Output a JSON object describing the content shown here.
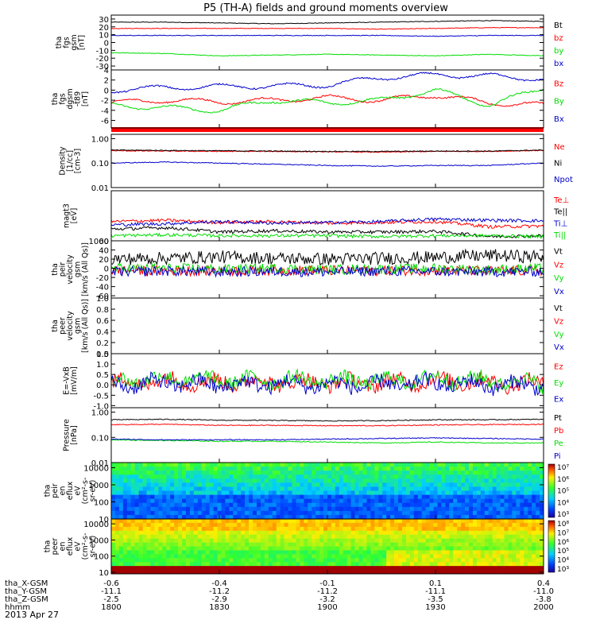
{
  "title": "P5 (TH-A) fields and ground moments overview",
  "date": "2013 Apr 27",
  "colors": {
    "black": "#000000",
    "red": "#ff0000",
    "green": "#00dd00",
    "blue": "#0000cc"
  },
  "chart_data": [
    {
      "id": "fgs",
      "type": "line",
      "ylabel": [
        "tha",
        "fgs",
        "gsm",
        "[nT]"
      ],
      "yscale": "linear",
      "ylim": [
        -35,
        35
      ],
      "yticks": [
        {
          "v": 30,
          "t": "30"
        },
        {
          "v": 20,
          "t": "20"
        },
        {
          "v": 10,
          "t": "10"
        },
        {
          "v": 0,
          "t": "0"
        },
        {
          "v": -10,
          "t": "-10"
        },
        {
          "v": -20,
          "t": "-20"
        },
        {
          "v": -30,
          "t": "-30"
        }
      ],
      "series": [
        {
          "name": "Bt",
          "color": "#000000",
          "base": [
            26,
            26,
            25,
            24,
            25,
            26,
            27,
            28,
            27
          ]
        },
        {
          "name": "bz",
          "color": "#ff0000",
          "base": [
            18,
            18,
            18,
            18,
            18,
            17,
            18,
            19,
            19
          ]
        },
        {
          "name": "by",
          "color": "#00dd00",
          "base": [
            -13,
            -14,
            -17,
            -16,
            -15,
            -16,
            -17,
            -15,
            -17
          ]
        },
        {
          "name": "bx",
          "color": "#0000cc",
          "base": [
            9,
            9,
            9,
            9,
            9,
            9,
            8,
            9,
            9
          ]
        }
      ]
    },
    {
      "id": "fgs_dgsm",
      "type": "line",
      "ylabel": [
        "tha",
        "fgs",
        "dgsm",
        "-t89",
        "[nT]"
      ],
      "yscale": "linear",
      "ylim": [
        -7.5,
        4
      ],
      "yticks": [
        {
          "v": 4,
          "t": "4"
        },
        {
          "v": 2,
          "t": "2"
        },
        {
          "v": 0,
          "t": "0"
        },
        {
          "v": -2,
          "t": "-2"
        },
        {
          "v": -4,
          "t": "-4"
        },
        {
          "v": -6,
          "t": "-6"
        }
      ],
      "series": [
        {
          "name": "Bz",
          "color": "#ff0000",
          "base": [
            -2.5,
            -2,
            -2.3,
            -2,
            -1.5,
            -2,
            -1,
            -2.5,
            -3
          ]
        },
        {
          "name": "By",
          "color": "#00dd00",
          "base": [
            -3,
            -3.5,
            -4,
            -2,
            -2.5,
            -2,
            0,
            -3,
            0.5
          ]
        },
        {
          "name": "Bx",
          "color": "#0000cc",
          "base": [
            0,
            0.5,
            0.7,
            0.8,
            1,
            2.5,
            3,
            2.8,
            2.2
          ]
        }
      ]
    },
    {
      "id": "density",
      "type": "line",
      "ylabel": [
        "Density",
        "[1/cc]",
        "[cm-3]"
      ],
      "yscale": "log",
      "ylim": [
        0.01,
        1.5
      ],
      "yticks": [
        {
          "v": 1,
          "t": "1.00"
        },
        {
          "v": 0.1,
          "t": "0.10"
        },
        {
          "v": 0.01,
          "t": "0.01"
        }
      ],
      "series": [
        {
          "name": "Ne",
          "color": "#ff0000",
          "base": [
            0.32,
            0.31,
            0.3,
            0.3,
            0.29,
            0.28,
            0.3,
            0.3,
            0.33
          ]
        },
        {
          "name": "Ni",
          "color": "#000000",
          "base": [
            0.34,
            0.33,
            0.32,
            0.31,
            0.3,
            0.3,
            0.31,
            0.31,
            0.34
          ]
        },
        {
          "name": "Npot",
          "color": "#0000cc",
          "base": [
            0.1,
            0.11,
            0.1,
            0.09,
            0.08,
            0.075,
            0.08,
            0.08,
            0.1
          ]
        }
      ]
    },
    {
      "id": "temperature",
      "type": "line",
      "ylabel": [
        "magt3",
        "[eV]"
      ],
      "yscale": "log",
      "ylim": [
        1000,
        50000
      ],
      "yticks": [
        {
          "v": 1000,
          "t": "1000"
        }
      ],
      "series": [
        {
          "name": "Te⊥",
          "color": "#ff0000",
          "base": [
            4500,
            5000,
            4200,
            4500,
            4000,
            4200,
            4500,
            3000,
            3200
          ]
        },
        {
          "name": "Te||",
          "color": "#000000",
          "base": [
            2500,
            2800,
            2000,
            2200,
            2000,
            2000,
            2100,
            1400,
            1500
          ]
        },
        {
          "name": "Ti⊥",
          "color": "#0000cc",
          "base": [
            3500,
            3800,
            4500,
            4000,
            4200,
            4500,
            5500,
            5000,
            4800
          ]
        },
        {
          "name": "Ti||",
          "color": "#00dd00",
          "base": [
            1500,
            1600,
            1500,
            1500,
            1500,
            1400,
            1500,
            1500,
            1400
          ]
        }
      ]
    },
    {
      "id": "peir_velocity",
      "type": "line",
      "ylabel": [
        "tha",
        "peir",
        "velocity",
        "gsm",
        "[km/s (All Qs)]"
      ],
      "yscale": "linear",
      "ylim": [
        -65,
        60
      ],
      "yticks": [
        {
          "v": 60,
          "t": "60"
        },
        {
          "v": 40,
          "t": "40"
        },
        {
          "v": 20,
          "t": "20"
        },
        {
          "v": 0,
          "t": "0"
        },
        {
          "v": -20,
          "t": "-20"
        },
        {
          "v": -40,
          "t": "-40"
        },
        {
          "v": -60,
          "t": "-60"
        }
      ],
      "series": [
        {
          "name": "Vt",
          "color": "#000000",
          "base": [
            20,
            22,
            25,
            22,
            20,
            22,
            24,
            28,
            25
          ]
        },
        {
          "name": "Vz",
          "color": "#ff0000",
          "base": [
            -5,
            -5,
            -6,
            -4,
            -5,
            -5,
            -5,
            -6,
            -5
          ]
        },
        {
          "name": "Vy",
          "color": "#00dd00",
          "base": [
            0,
            0,
            -2,
            0,
            -3,
            -2,
            0,
            -3,
            0
          ]
        },
        {
          "name": "Vx",
          "color": "#0000cc",
          "base": [
            -8,
            -6,
            -8,
            -7,
            -8,
            -6,
            -7,
            -8,
            -7
          ]
        }
      ]
    },
    {
      "id": "peer_velocity",
      "type": "line",
      "ylabel": [
        "tha",
        "peer",
        "velocity",
        "gsm",
        "[km/s (All Qs)]"
      ],
      "yscale": "linear",
      "ylim": [
        0,
        1
      ],
      "yticks": [
        {
          "v": 1,
          "t": "1.0"
        },
        {
          "v": 0.8,
          "t": "0.8"
        },
        {
          "v": 0.6,
          "t": "0.6"
        },
        {
          "v": 0.4,
          "t": "0.4"
        },
        {
          "v": 0.2,
          "t": "0.2"
        },
        {
          "v": 0,
          "t": "0.0"
        }
      ],
      "series": [
        {
          "name": "Vt",
          "color": "#000000",
          "base": []
        },
        {
          "name": "Vz",
          "color": "#ff0000",
          "base": []
        },
        {
          "name": "Vy",
          "color": "#00dd00",
          "base": []
        },
        {
          "name": "Vx",
          "color": "#0000cc",
          "base": []
        }
      ]
    },
    {
      "id": "efield",
      "type": "line",
      "ylabel": [
        "E=-VxB",
        "[mV/m]"
      ],
      "yscale": "linear",
      "ylim": [
        -1.1,
        1.5
      ],
      "yticks": [
        {
          "v": 1.5,
          "t": "1.5"
        },
        {
          "v": 1,
          "t": "1.0"
        },
        {
          "v": 0.5,
          "t": "0.5"
        },
        {
          "v": 0,
          "t": "0.0"
        },
        {
          "v": -0.5,
          "t": "-0.5"
        },
        {
          "v": -1,
          "t": "-1.0"
        }
      ],
      "series": [
        {
          "name": "Ez",
          "color": "#ff0000",
          "base": [
            0.1,
            0.2,
            0.1,
            0.15,
            0.1,
            0.1,
            0.2,
            0.1,
            0.05
          ]
        },
        {
          "name": "Ey",
          "color": "#00dd00",
          "base": [
            0.2,
            0.3,
            0.2,
            0.25,
            0.2,
            0.2,
            0.3,
            0.2,
            0.1
          ]
        },
        {
          "name": "Ex",
          "color": "#0000cc",
          "base": [
            0,
            0.1,
            0,
            0.05,
            0,
            0,
            0.1,
            0,
            0
          ]
        }
      ]
    },
    {
      "id": "pressure",
      "type": "line",
      "ylabel": [
        "Pressure",
        "[nPa]"
      ],
      "yscale": "log",
      "ylim": [
        0.01,
        1.5
      ],
      "yticks": [
        {
          "v": 1,
          "t": "1.00"
        },
        {
          "v": 0.1,
          "t": "0.10"
        },
        {
          "v": 0.01,
          "t": "0.01"
        }
      ],
      "series": [
        {
          "name": "Pt",
          "color": "#000000",
          "base": [
            0.5,
            0.52,
            0.48,
            0.47,
            0.45,
            0.46,
            0.5,
            0.5,
            0.52
          ]
        },
        {
          "name": "Pb",
          "color": "#ff0000",
          "base": [
            0.32,
            0.33,
            0.3,
            0.3,
            0.29,
            0.29,
            0.31,
            0.32,
            0.33
          ]
        },
        {
          "name": "Pe",
          "color": "#00dd00",
          "base": [
            0.08,
            0.075,
            0.07,
            0.07,
            0.065,
            0.06,
            0.065,
            0.06,
            0.06
          ]
        },
        {
          "name": "Pi",
          "color": "#0000cc",
          "base": [
            0.085,
            0.08,
            0.08,
            0.08,
            0.085,
            0.09,
            0.095,
            0.09,
            0.085
          ]
        }
      ]
    },
    {
      "id": "peir_eflux",
      "type": "heatmap",
      "ylabel": [
        "tha",
        "peir",
        "en",
        "eflux",
        "eV",
        "(cm²-s-",
        "sr-eV)"
      ],
      "yscale": "log",
      "ylim": [
        10,
        20000
      ],
      "yticks": [
        {
          "v": 10000,
          "t": "10000"
        },
        {
          "v": 1000,
          "t": "1000"
        },
        {
          "v": 100,
          "t": "100"
        },
        {
          "v": 10,
          "t": "10"
        }
      ],
      "colorbar": {
        "ticks": [
          "10⁷",
          "10⁶",
          "10⁵",
          "10⁴",
          "10³"
        ]
      },
      "series": []
    },
    {
      "id": "peer_eflux",
      "type": "heatmap",
      "ylabel": [
        "tha",
        "peer",
        "en",
        "eflux",
        "eV",
        "(cm²-s-",
        "sr-eV)"
      ],
      "yscale": "log",
      "ylim": [
        8,
        20000
      ],
      "yticks": [
        {
          "v": 10000,
          "t": "10000"
        },
        {
          "v": 1000,
          "t": "1000"
        },
        {
          "v": 100,
          "t": "100"
        },
        {
          "v": 10,
          "t": "10"
        }
      ],
      "colorbar": {
        "ticks": [
          "10⁸",
          "10⁷",
          "10⁶",
          "10⁵",
          "10⁴",
          "10³"
        ]
      },
      "series": []
    }
  ],
  "xaxis": {
    "rows": [
      {
        "label": "tha_X-GSM",
        "values": [
          "-0.6",
          "-0.4",
          "-0.1",
          "0.1",
          "0.4"
        ]
      },
      {
        "label": "tha_Y-GSM",
        "values": [
          "-11.1",
          "-11.2",
          "-11.2",
          "-11.1",
          "-11.0"
        ]
      },
      {
        "label": "tha_Z-GSM",
        "values": [
          "-2.5",
          "-2.9",
          "-3.2",
          "-3.5",
          "-3.8"
        ]
      },
      {
        "label": "hhmm",
        "values": [
          "1800",
          "1830",
          "1900",
          "1930",
          "2000"
        ]
      }
    ]
  }
}
